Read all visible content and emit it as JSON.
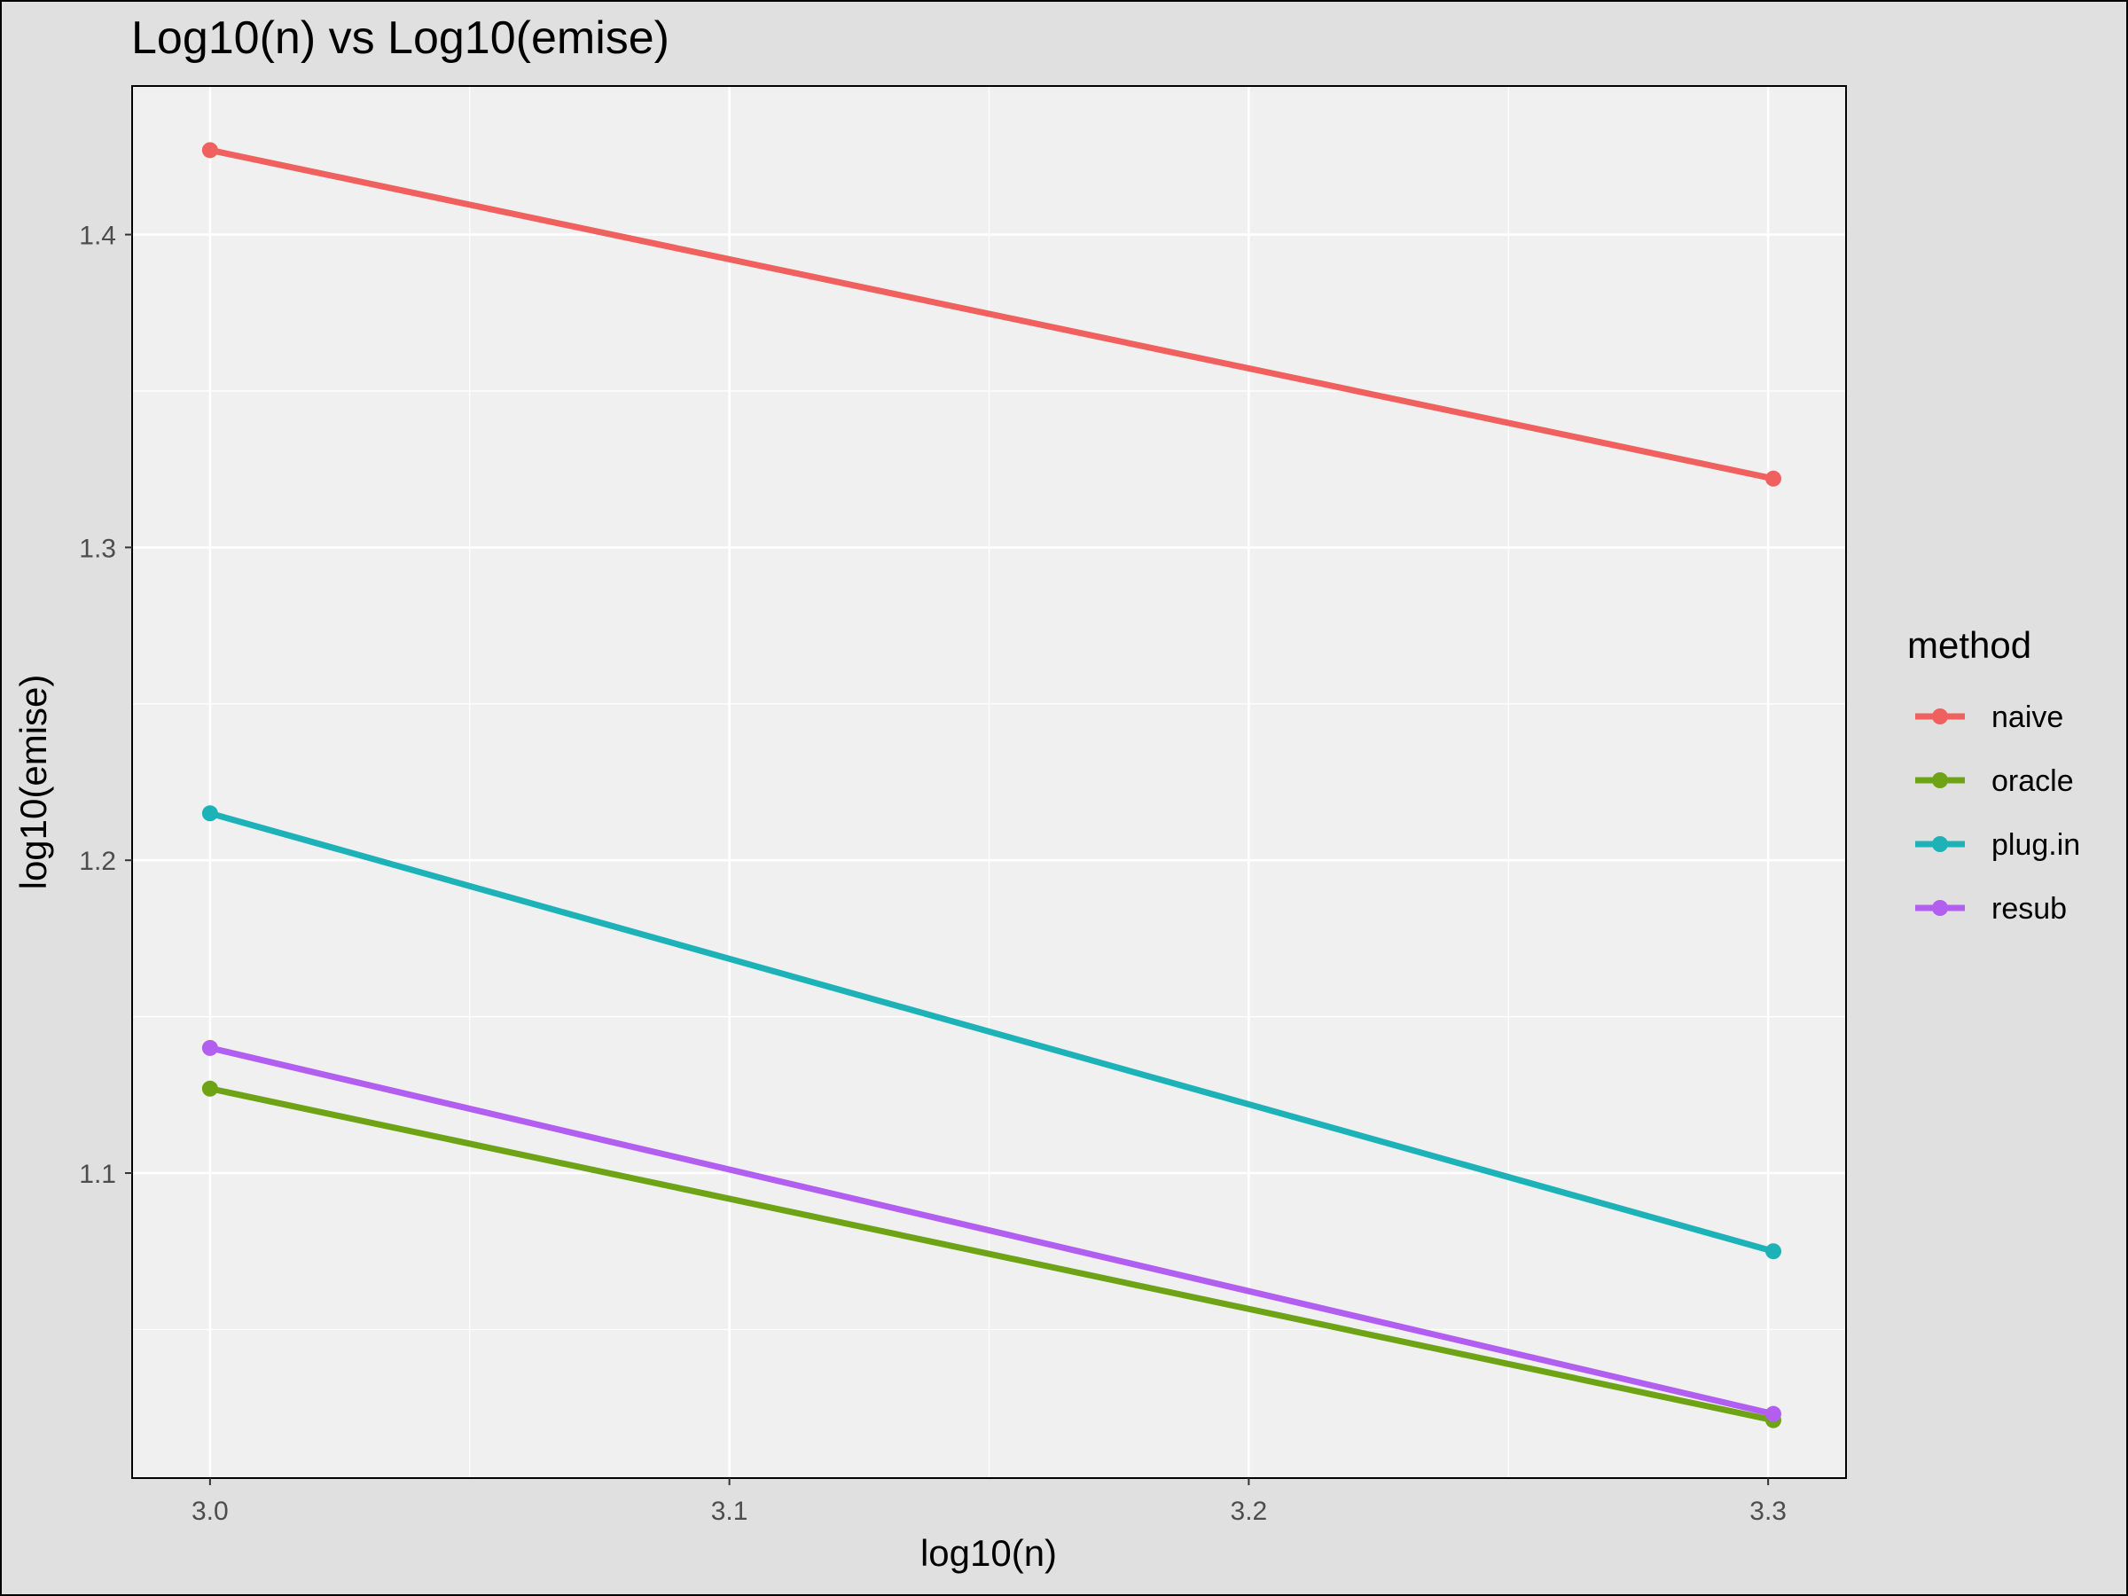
{
  "chart_data": {
    "type": "line",
    "title": "Log10(n) vs Log10(emise)",
    "xlabel": "log10(n)",
    "ylabel": "log10(emise)",
    "xlim": [
      2.985,
      3.315
    ],
    "ylim": [
      1.0025,
      1.4475
    ],
    "x_ticks": [
      3.0,
      3.1,
      3.2,
      3.3
    ],
    "x_tick_labels": [
      "3.0",
      "3.1",
      "3.2",
      "3.3"
    ],
    "x_minor_ticks": [
      3.05,
      3.15,
      3.25
    ],
    "y_ticks": [
      1.1,
      1.2,
      1.3,
      1.4
    ],
    "y_tick_labels": [
      "1.1",
      "1.2",
      "1.3",
      "1.4"
    ],
    "y_minor_ticks": [
      1.05,
      1.15,
      1.25,
      1.35
    ],
    "grid": true,
    "legend_title": "method",
    "legend_position": "right",
    "x": [
      3.0,
      3.301
    ],
    "series": [
      {
        "name": "naive",
        "color": "#f0605e",
        "values": [
          1.427,
          1.322
        ]
      },
      {
        "name": "oracle",
        "color": "#6da315",
        "values": [
          1.127,
          1.021
        ]
      },
      {
        "name": "plug.in",
        "color": "#1db2b8",
        "values": [
          1.215,
          1.075
        ]
      },
      {
        "name": "resub",
        "color": "#b25ef0",
        "values": [
          1.14,
          1.023
        ]
      }
    ]
  }
}
